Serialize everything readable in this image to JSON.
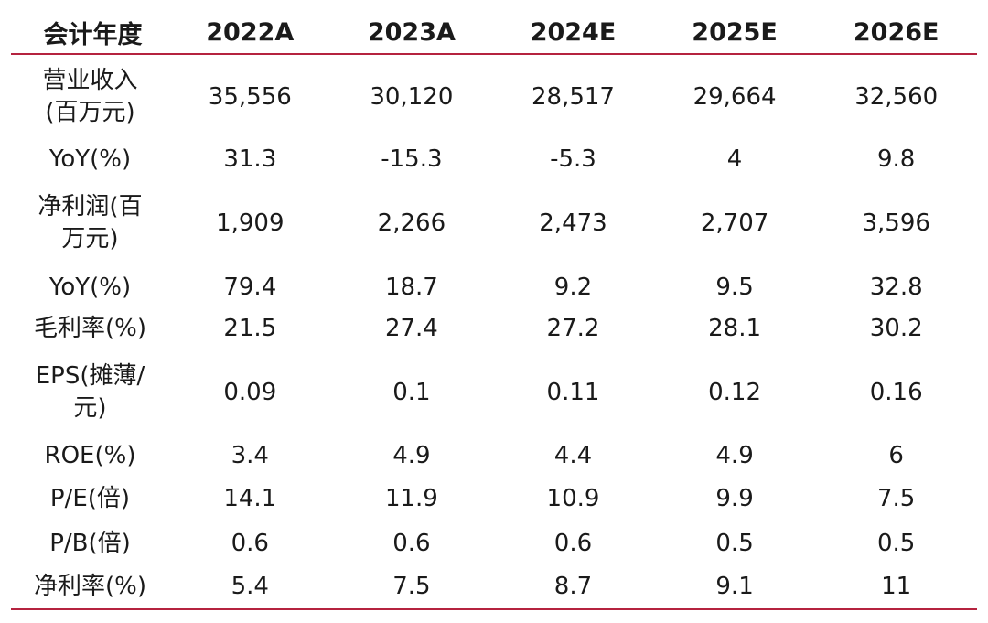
{
  "table": {
    "header": {
      "label": "会计年度",
      "years": [
        "2022A",
        "2023A",
        "2024E",
        "2025E",
        "2026E"
      ]
    },
    "rows": [
      {
        "label": "营业收入\n(百万元)",
        "values": [
          "35,556",
          "30,120",
          "28,517",
          "29,664",
          "32,560"
        ]
      },
      {
        "label": "YoY(%)",
        "values": [
          "31.3",
          "-15.3",
          "-5.3",
          "4",
          "9.8"
        ]
      },
      {
        "label": "净利润(百\n万元)",
        "values": [
          "1,909",
          "2,266",
          "2,473",
          "2,707",
          "3,596"
        ]
      },
      {
        "label": "YoY(%)",
        "values": [
          "79.4",
          "18.7",
          "9.2",
          "9.5",
          "32.8"
        ]
      },
      {
        "label": "毛利率(%)",
        "values": [
          "21.5",
          "27.4",
          "27.2",
          "28.1",
          "30.2"
        ]
      },
      {
        "label": "EPS(摊薄/\n元)",
        "values": [
          "0.09",
          "0.1",
          "0.11",
          "0.12",
          "0.16"
        ]
      },
      {
        "label": "ROE(%)",
        "values": [
          "3.4",
          "4.9",
          "4.4",
          "4.9",
          "6"
        ]
      },
      {
        "label": "P/E(倍)",
        "values": [
          "14.1",
          "11.9",
          "10.9",
          "9.9",
          "7.5"
        ]
      },
      {
        "label": "P/B(倍)",
        "values": [
          "0.6",
          "0.6",
          "0.6",
          "0.5",
          "0.5"
        ]
      },
      {
        "label": "净利率(%)",
        "values": [
          "5.4",
          "7.5",
          "8.7",
          "9.1",
          "11"
        ]
      }
    ]
  },
  "colors": {
    "rule": "#b5233f",
    "text": "#1a1a1a"
  }
}
